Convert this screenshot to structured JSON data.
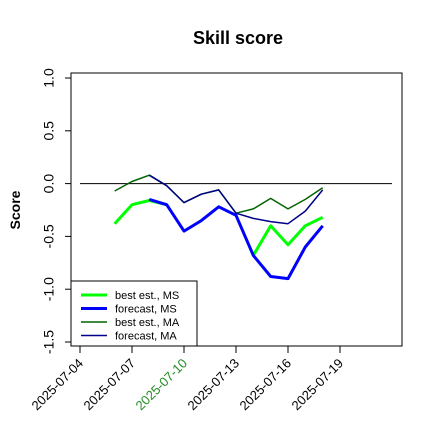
{
  "chart_data": {
    "type": "line",
    "title": "Skill score",
    "xlabel": "",
    "ylabel": "Score",
    "ylim": [
      -1.5,
      1.0
    ],
    "xlim_index": [
      -2,
      16
    ],
    "x_tick_labels": [
      {
        "label": "2025-07-04",
        "color": "#000000"
      },
      {
        "label": "2025-07-07",
        "color": "#000000"
      },
      {
        "label": "2025-07-10",
        "color": "#228B22"
      },
      {
        "label": "2025-07-13",
        "color": "#000000"
      },
      {
        "label": "2025-07-16",
        "color": "#000000"
      },
      {
        "label": "2025-07-19",
        "color": "#000000"
      }
    ],
    "y_ticks": [
      -1.5,
      -1.0,
      -0.5,
      0.0,
      0.5,
      1.0
    ],
    "y_tick_labels": [
      "-1.5",
      "-1.0",
      "-0.5",
      "0.0",
      "0.5",
      "1.0"
    ],
    "reference_line": 0.0,
    "grid": false,
    "legend_position": "bottom-left",
    "x": [
      "2025-07-06",
      "2025-07-07",
      "2025-07-08",
      "2025-07-09",
      "2025-07-10",
      "2025-07-11",
      "2025-07-12",
      "2025-07-13",
      "2025-07-14",
      "2025-07-15",
      "2025-07-16",
      "2025-07-17",
      "2025-07-18",
      "2025-07-19"
    ],
    "series": [
      {
        "name": "best est., MS",
        "color": "#00ff00",
        "width": 3,
        "values": [
          -0.38,
          -0.2,
          -0.16,
          -0.2,
          null,
          null,
          null,
          null,
          -0.68,
          -0.4,
          -0.58,
          -0.4,
          -0.32,
          null
        ]
      },
      {
        "name": "forecast, MS",
        "color": "#0000ff",
        "width": 3,
        "values": [
          null,
          null,
          -0.15,
          -0.2,
          -0.45,
          -0.35,
          -0.22,
          -0.3,
          -0.68,
          -0.88,
          -0.9,
          -0.6,
          -0.4,
          null
        ]
      },
      {
        "name": "best est., MA",
        "color": "#006400",
        "width": 1.5,
        "values": [
          -0.07,
          0.02,
          0.08,
          -0.02,
          -0.18,
          -0.1,
          -0.06,
          -0.28,
          -0.24,
          -0.14,
          -0.24,
          -0.15,
          -0.04,
          null
        ]
      },
      {
        "name": "forecast, MA",
        "color": "#00008b",
        "width": 1.5,
        "values": [
          null,
          null,
          0.08,
          -0.02,
          -0.18,
          -0.1,
          -0.06,
          -0.28,
          -0.33,
          -0.36,
          -0.38,
          -0.26,
          -0.06,
          null
        ]
      }
    ]
  }
}
